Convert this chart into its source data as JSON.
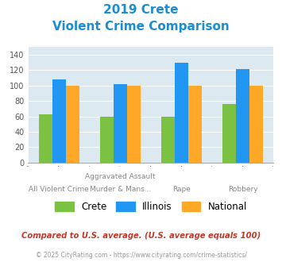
{
  "title_line1": "2019 Crete",
  "title_line2": "Violent Crime Comparison",
  "cat_labels_top": [
    "",
    "Aggravated Assault",
    "",
    ""
  ],
  "cat_labels_bot": [
    "All Violent Crime",
    "Murder & Mans...",
    "Rape",
    "Robbery"
  ],
  "crete": [
    63,
    60,
    59,
    76
  ],
  "illinois": [
    108,
    102,
    130,
    121
  ],
  "national": [
    100,
    100,
    100,
    100
  ],
  "colors": {
    "crete": "#7bc142",
    "illinois": "#2196f3",
    "national": "#ffa726"
  },
  "ylim": [
    0,
    150
  ],
  "yticks": [
    0,
    20,
    40,
    60,
    80,
    100,
    120,
    140
  ],
  "legend_labels": [
    "Crete",
    "Illinois",
    "National"
  ],
  "footnote1": "Compared to U.S. average. (U.S. average equals 100)",
  "footnote2": "© 2025 CityRating.com - https://www.cityrating.com/crime-statistics/",
  "title_color": "#1a8dd6",
  "footnote1_color": "#c0392b",
  "footnote2_color": "#999999",
  "plot_bg": "#dce9f0"
}
